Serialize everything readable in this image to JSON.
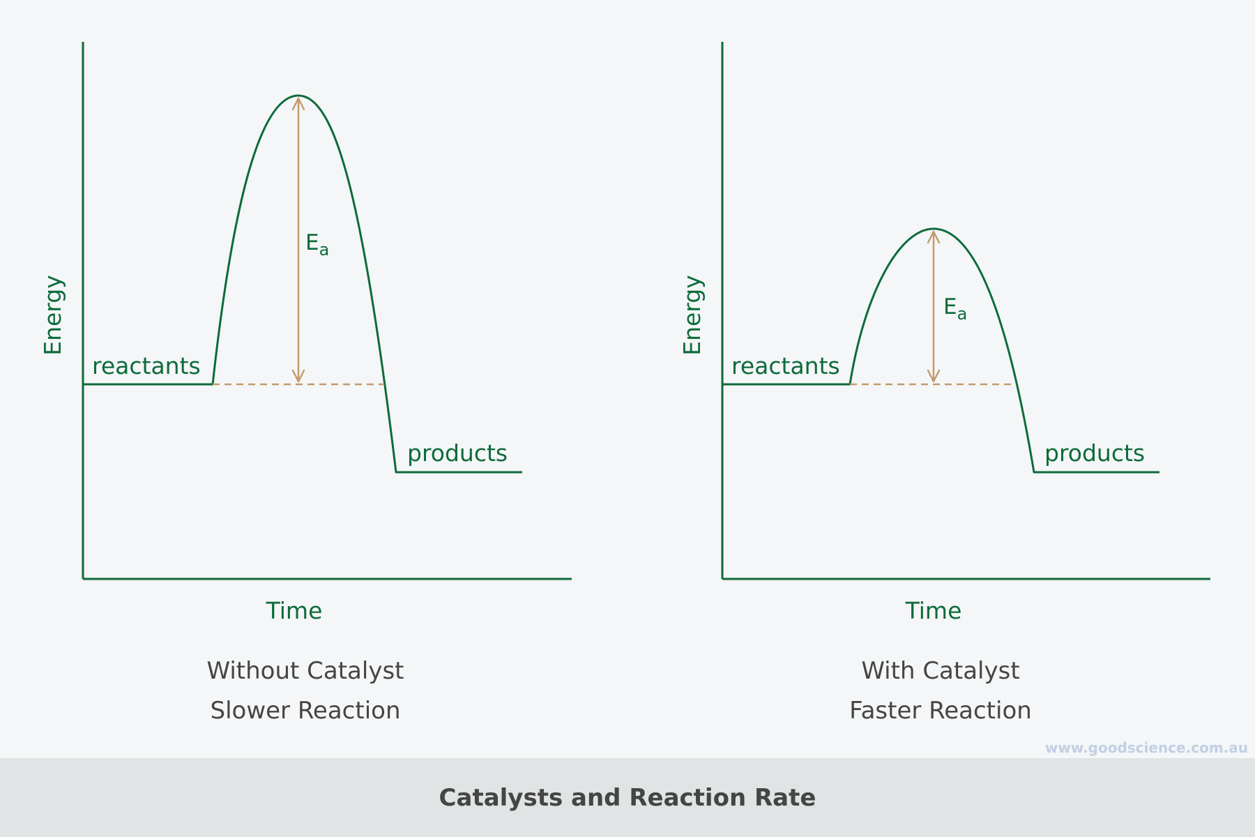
{
  "colors": {
    "background": "#f4f6f7",
    "green": "#0d6b3a",
    "arrow": "#c39a6b",
    "caption": "#454545",
    "footer_band": "#e0e4e4",
    "watermark": "#c2cfe4"
  },
  "panels": [
    {
      "y_label": "Energy",
      "x_label": "Time",
      "reactants_label": "reactants",
      "products_label": "products",
      "ea_symbol": "E",
      "ea_subscript": "a",
      "caption_line1": "Without Catalyst",
      "caption_line2": "Slower Reaction"
    },
    {
      "y_label": "Energy",
      "x_label": "Time",
      "reactants_label": "reactants",
      "products_label": "products",
      "ea_symbol": "E",
      "ea_subscript": "a",
      "caption_line1": "With Catalyst",
      "caption_line2": "Faster Reaction"
    }
  ],
  "watermark": "www.goodscience.com.au",
  "footer_title": "Catalysts and Reaction Rate"
}
